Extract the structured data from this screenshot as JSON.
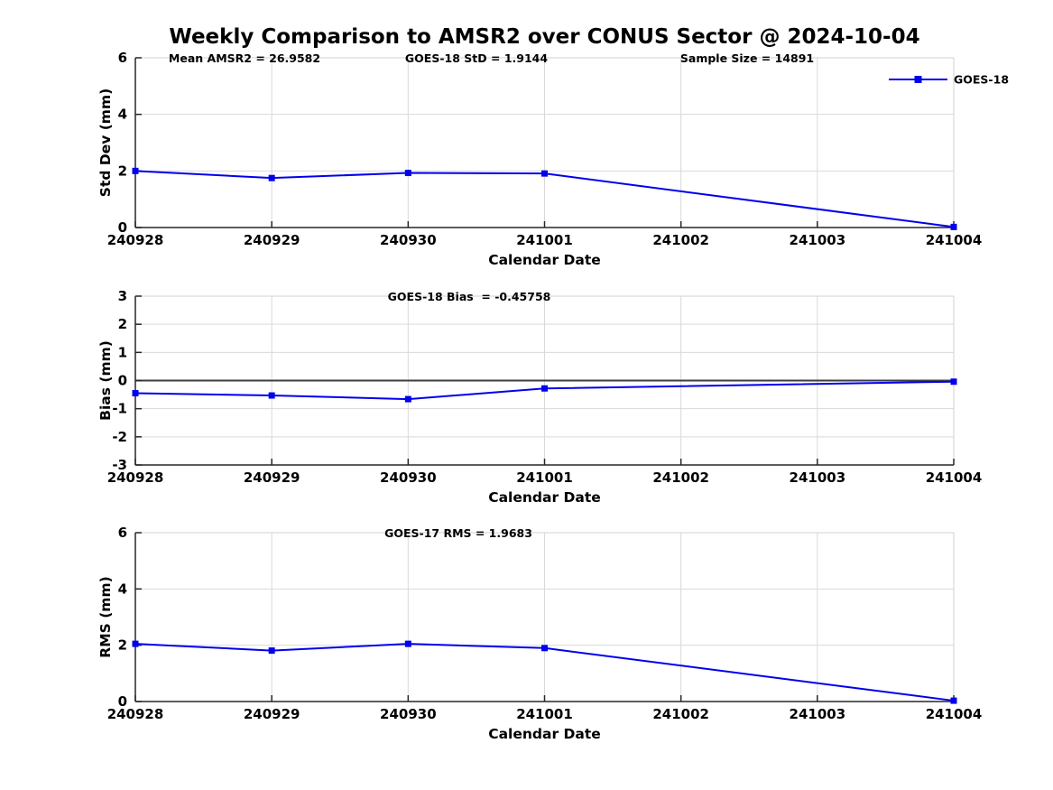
{
  "figure": {
    "title": "Weekly Comparison to AMSR2 over CONUS Sector @ 2024-10-04",
    "background": "#ffffff"
  },
  "colors": {
    "line": "#0000ee",
    "marker": "#0000ee",
    "axis": "#262626",
    "grid": "#d9d9d9",
    "box_edge": "#d2d2d2",
    "zero_line": "#3d3d3d",
    "text": "#000000"
  },
  "chart_data": [
    {
      "type": "line",
      "name": "std-dev-panel",
      "annotations": [
        "Mean AMSR2 = 26.9582",
        "GOES-18 StD = 1.9144",
        "Sample Size = 14891"
      ],
      "categories": [
        "240928",
        "240929",
        "240930",
        "241001",
        "241002",
        "241003",
        "241004"
      ],
      "series": [
        {
          "name": "GOES-18",
          "color": "#0000ee",
          "marker": "square",
          "points": [
            {
              "x": "240928",
              "y": 2.0
            },
            {
              "x": "240929",
              "y": 1.75
            },
            {
              "x": "240930",
              "y": 1.93
            },
            {
              "x": "241001",
              "y": 1.91
            },
            {
              "x": "241004",
              "y": 0.02
            }
          ]
        }
      ],
      "xlabel": "Calendar Date",
      "ylabel": "Std Dev (mm)",
      "ylim": [
        0,
        6
      ],
      "yticks": [
        0,
        2,
        4,
        6
      ],
      "grid": true,
      "zero_line": false,
      "legend": {
        "entries": [
          "GOES-18"
        ],
        "position": "top-right-outside"
      }
    },
    {
      "type": "line",
      "name": "bias-panel",
      "annotations": [
        "GOES-18 Bias  = -0.45758"
      ],
      "categories": [
        "240928",
        "240929",
        "240930",
        "241001",
        "241002",
        "241003",
        "241004"
      ],
      "series": [
        {
          "name": "GOES-18",
          "color": "#0000ee",
          "marker": "square",
          "points": [
            {
              "x": "240928",
              "y": -0.45
            },
            {
              "x": "240929",
              "y": -0.53
            },
            {
              "x": "240930",
              "y": -0.66
            },
            {
              "x": "241001",
              "y": -0.28
            },
            {
              "x": "241004",
              "y": -0.04
            }
          ]
        }
      ],
      "xlabel": "Calendar Date",
      "ylabel": "Bias (mm)",
      "ylim": [
        -3,
        3
      ],
      "yticks": [
        -3,
        -2,
        -1,
        0,
        1,
        2,
        3
      ],
      "grid": true,
      "zero_line": true,
      "legend": null
    },
    {
      "type": "line",
      "name": "rms-panel",
      "annotations": [
        "GOES-17 RMS = 1.9683"
      ],
      "categories": [
        "240928",
        "240929",
        "240930",
        "241001",
        "241002",
        "241003",
        "241004"
      ],
      "series": [
        {
          "name": "GOES-18",
          "color": "#0000ee",
          "marker": "square",
          "points": [
            {
              "x": "240928",
              "y": 2.05
            },
            {
              "x": "240929",
              "y": 1.81
            },
            {
              "x": "240930",
              "y": 2.05
            },
            {
              "x": "241001",
              "y": 1.9
            },
            {
              "x": "241004",
              "y": 0.03
            }
          ]
        }
      ],
      "xlabel": "Calendar Date",
      "ylabel": "RMS (mm)",
      "ylim": [
        0,
        6
      ],
      "yticks": [
        0,
        2,
        4,
        6
      ],
      "grid": true,
      "zero_line": false,
      "legend": null
    }
  ]
}
